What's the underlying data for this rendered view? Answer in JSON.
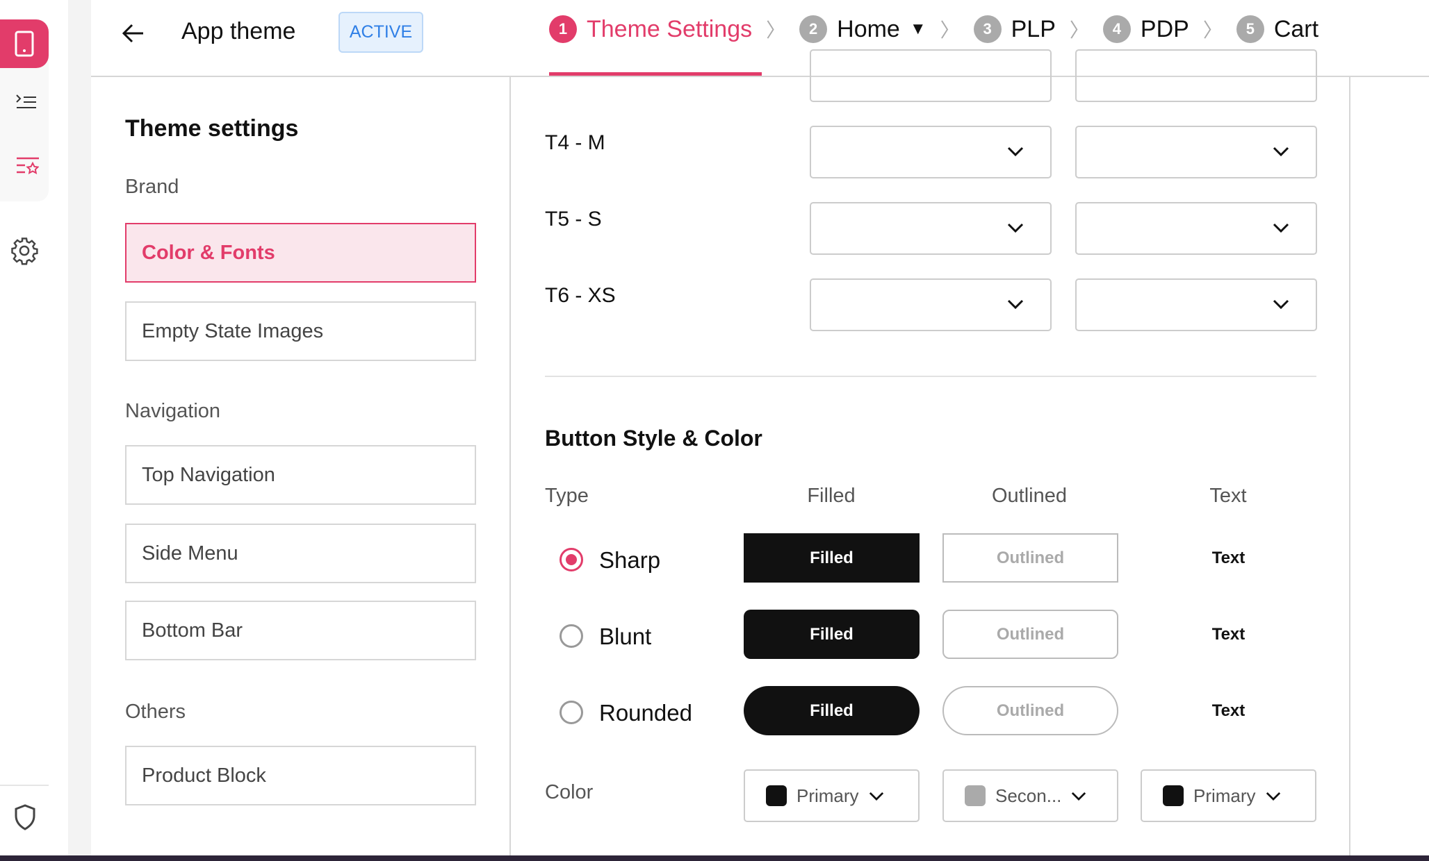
{
  "header": {
    "title": "App theme",
    "status_badge": "ACTIVE",
    "steps": [
      {
        "num": "1",
        "label": "Theme Settings",
        "active": true
      },
      {
        "num": "2",
        "label": "Home",
        "dropdown": true
      },
      {
        "num": "3",
        "label": "PLP"
      },
      {
        "num": "4",
        "label": "PDP"
      },
      {
        "num": "5",
        "label": "Cart"
      }
    ]
  },
  "rail": {
    "icons": [
      "mobile-icon",
      "list-indent-icon",
      "list-star-icon",
      "gear-icon",
      "shield-icon"
    ]
  },
  "sidebar": {
    "heading": "Theme settings",
    "groups": [
      {
        "label": "Brand",
        "items": [
          "Color & Fonts",
          "Empty State Images"
        ]
      },
      {
        "label": "Navigation",
        "items": [
          "Top Navigation",
          "Side Menu",
          "Bottom Bar"
        ]
      },
      {
        "label": "Others",
        "items": [
          "Product Block"
        ]
      }
    ],
    "selected": "Color & Fonts"
  },
  "typography": {
    "rows": [
      "T4 - M",
      "T5 - S",
      "T6 - XS"
    ]
  },
  "buttons": {
    "heading": "Button Style & Color",
    "columns": [
      "Type",
      "Filled",
      "Outlined",
      "Text"
    ],
    "rows": [
      {
        "label": "Sharp",
        "selected": true,
        "filled": "Filled",
        "outlined": "Outlined",
        "text": "Text"
      },
      {
        "label": "Blunt",
        "selected": false,
        "filled": "Filled",
        "outlined": "Outlined",
        "text": "Text"
      },
      {
        "label": "Rounded",
        "selected": false,
        "filled": "Filled",
        "outlined": "Outlined",
        "text": "Text"
      }
    ],
    "color_label": "Color",
    "colors": [
      {
        "value": "Primary",
        "swatch": "#111111"
      },
      {
        "value": "Secon...",
        "swatch": "#aaaaaa"
      },
      {
        "value": "Primary",
        "swatch": "#111111"
      }
    ]
  },
  "colors": {
    "accent": "#e23c6a",
    "badge": "#2f7fe6"
  }
}
